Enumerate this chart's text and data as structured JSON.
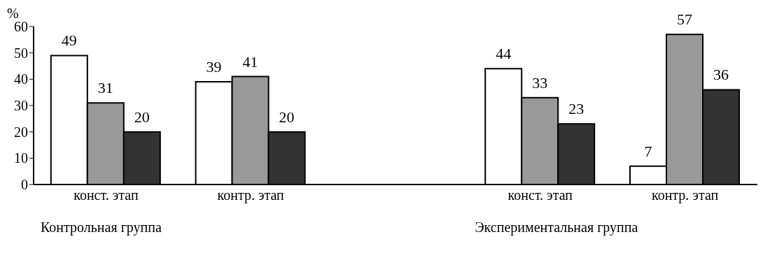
{
  "chart_data": {
    "type": "bar",
    "ylabel": "%",
    "categories": [
      "конст. этап",
      "контр. этап",
      null,
      "конст. этап",
      "контр. этап"
    ],
    "series": [
      {
        "color": "#ffffff",
        "values": [
          49,
          39,
          null,
          44,
          7
        ]
      },
      {
        "color": "#999999",
        "values": [
          31,
          41,
          null,
          33,
          57
        ]
      },
      {
        "color": "#333333",
        "values": [
          20,
          20,
          null,
          23,
          36
        ]
      }
    ],
    "ylim": [
      0,
      60
    ],
    "yticks": [
      0,
      10,
      20,
      30,
      40,
      50,
      60
    ],
    "data_labels": true,
    "annotations": [
      "Контрольная группа",
      "Экспериментальная группа"
    ]
  }
}
